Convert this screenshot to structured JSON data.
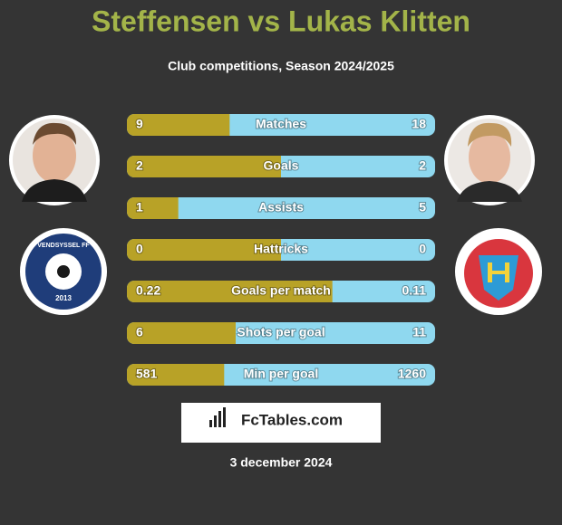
{
  "header": {
    "title": "Steffensen vs Lukas Klitten",
    "subtitle": "Club competitions, Season 2024/2025"
  },
  "colors": {
    "left": "#b8a227",
    "right": "#8fd8ef"
  },
  "rows": [
    {
      "label": "Matches",
      "left": 9,
      "right": 18
    },
    {
      "label": "Goals",
      "left": 2,
      "right": 2
    },
    {
      "label": "Assists",
      "left": 1,
      "right": 5
    },
    {
      "label": "Hattricks",
      "left": 0,
      "right": 0
    },
    {
      "label": "Goals per match",
      "left": 0.22,
      "right": 0.11
    },
    {
      "label": "Shots per goal",
      "left": 6,
      "right": 11
    },
    {
      "label": "Min per goal",
      "left": 581,
      "right": 1260
    }
  ],
  "left_badge": {
    "name": "VENDSYSSEL FF",
    "year": "2013"
  },
  "brand": "FcTables.com",
  "date": "3 december 2024"
}
